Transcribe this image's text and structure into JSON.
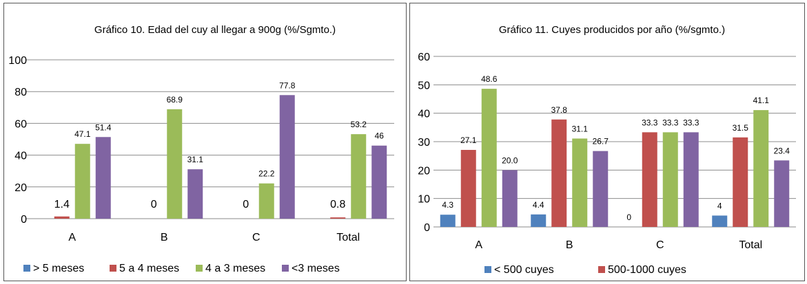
{
  "chart_data": [
    {
      "type": "bar",
      "title": "Gráfico 10. Edad del cuy al llegar a 900g (%/Sgmto.)",
      "categories": [
        "A",
        "B",
        "C",
        "Total"
      ],
      "ylim": [
        0,
        100
      ],
      "yticks": [
        "0",
        "20",
        "40",
        "60",
        "80",
        "100"
      ],
      "grid": true,
      "legend": "bottom",
      "series": [
        {
          "name": "> 5 meses",
          "color": "#4f81bd",
          "values": [
            0,
            0,
            0,
            0
          ],
          "labels": [
            "",
            "",
            "",
            ""
          ]
        },
        {
          "name": "5 a 4 meses",
          "color": "#c0504d",
          "values": [
            1.4,
            0,
            0,
            0.8
          ],
          "labels": [
            "1.4",
            "0",
            "0",
            "0.8"
          ]
        },
        {
          "name": "4 a 3 meses",
          "color": "#9bbb59",
          "values": [
            47.1,
            68.9,
            22.2,
            53.2
          ],
          "labels": [
            "47.1",
            "68.9",
            "22.2",
            "53.2"
          ]
        },
        {
          "name": "<3 meses",
          "color": "#8064a2",
          "values": [
            51.4,
            31.1,
            77.8,
            46
          ],
          "labels": [
            "51.4",
            "31.1",
            "77.8",
            "46"
          ]
        }
      ]
    },
    {
      "type": "bar",
      "title": "Gráfico 11. Cuyes producidos por año (%/sgmto.)",
      "categories": [
        "A",
        "B",
        "C",
        "Total"
      ],
      "ylim": [
        0,
        60
      ],
      "yticks": [
        "0",
        "10",
        "20",
        "30",
        "40",
        "50",
        "60"
      ],
      "grid": true,
      "legend": "bottom",
      "series": [
        {
          "name": "< 500 cuyes",
          "color": "#4f81bd",
          "values": [
            4.3,
            4.4,
            0,
            4
          ],
          "labels": [
            "4.3",
            "4.4",
            "0",
            "4"
          ]
        },
        {
          "name": "500-1000 cuyes",
          "color": "#c0504d",
          "values": [
            27.1,
            37.8,
            33.3,
            31.5
          ],
          "labels": [
            "27.1",
            "37.8",
            "33.3",
            "31.5"
          ]
        },
        {
          "name": "",
          "color": "#9bbb59",
          "values": [
            48.6,
            31.1,
            33.3,
            41.1
          ],
          "labels": [
            "48.6",
            "31.1",
            "33.3",
            "41.1"
          ]
        },
        {
          "name": "",
          "color": "#8064a2",
          "values": [
            20.0,
            26.7,
            33.3,
            23.4
          ],
          "labels": [
            "20.0",
            "26.7",
            "33.3",
            "23.4"
          ]
        }
      ]
    }
  ]
}
